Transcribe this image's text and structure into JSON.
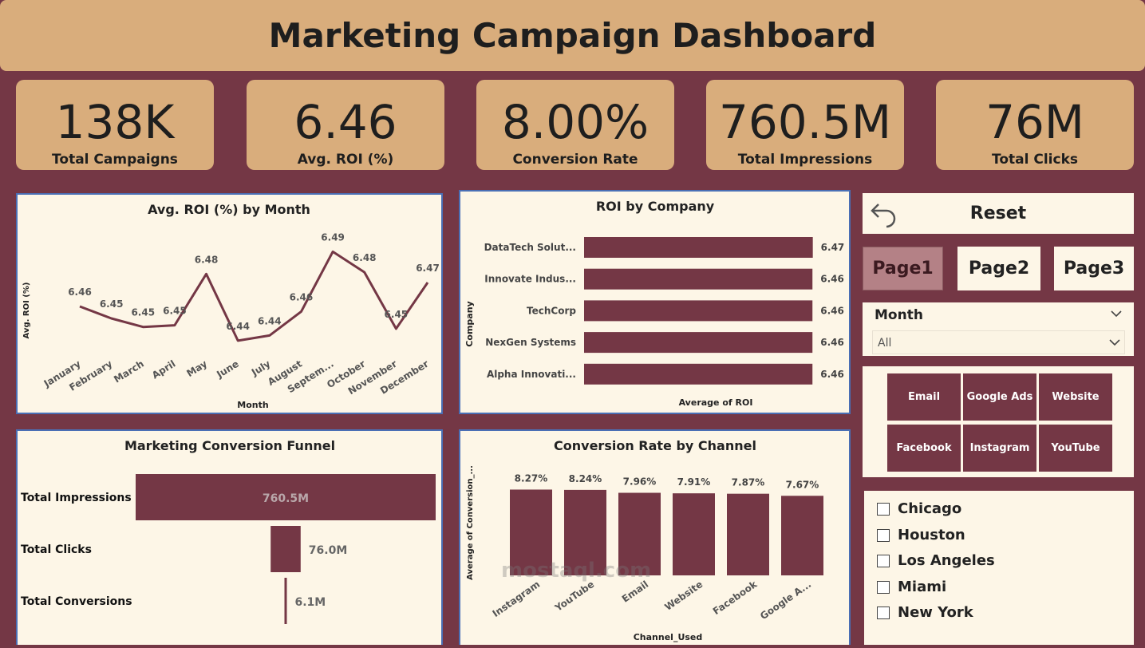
{
  "header": {
    "title": "Marketing Campaign Dashboard"
  },
  "kpis": [
    {
      "value": "138K",
      "label": "Total Campaigns"
    },
    {
      "value": "6.46",
      "label": "Avg. ROI (%)"
    },
    {
      "value": "8.00%",
      "label": "Conversion Rate"
    },
    {
      "value": "760.5M",
      "label": "Total Impressions"
    },
    {
      "value": "76M",
      "label": "Total Clicks"
    }
  ],
  "colors": {
    "bg": "#743745",
    "accent": "#d9ad7c",
    "panel": "#fdf6e7",
    "bar": "#743745"
  },
  "roi_month": {
    "title": "Avg. ROI (%) by Month",
    "xlabel": "Month",
    "ylabel": "Avg. ROI (%)"
  },
  "roi_company": {
    "title": "ROI by Company",
    "xlabel": "Average of ROI",
    "ylabel": "Company"
  },
  "funnel": {
    "title": "Marketing Conversion Funnel"
  },
  "conv_channel": {
    "title": "Conversion Rate by Channel",
    "xlabel": "Channel_Used",
    "ylabel": "Average of Conversion_..."
  },
  "chart_data": [
    {
      "type": "line",
      "title": "Avg. ROI (%) by Month",
      "xlabel": "Month",
      "ylabel": "Avg. ROI (%)",
      "categories": [
        "January",
        "February",
        "March",
        "April",
        "May",
        "June",
        "July",
        "August",
        "Septem...",
        "October",
        "November",
        "December"
      ],
      "values": [
        6.458,
        6.451,
        6.446,
        6.447,
        6.477,
        6.438,
        6.441,
        6.455,
        6.49,
        6.478,
        6.445,
        6.472
      ],
      "data_labels": [
        "6.46",
        "6.45",
        "6.45",
        "6.45",
        "6.48",
        "6.44",
        "6.44",
        "6.46",
        "6.49",
        "6.48",
        "6.45",
        "6.47"
      ],
      "ylim": [
        6.43,
        6.5
      ]
    },
    {
      "type": "bar",
      "title": "ROI by Company",
      "xlabel": "Average of ROI",
      "ylabel": "Company",
      "categories": [
        "DataTech Solut...",
        "Innovate Indus...",
        "TechCorp",
        "NexGen Systems",
        "Alpha Innovati..."
      ],
      "values": [
        6.47,
        6.46,
        6.46,
        6.46,
        6.46
      ],
      "data_labels": [
        "6.47",
        "6.46",
        "6.46",
        "6.46",
        "6.46"
      ],
      "xlim": [
        0,
        6.5
      ]
    },
    {
      "type": "bar",
      "title": "Marketing Conversion Funnel",
      "categories": [
        "Total Impressions",
        "Total Clicks",
        "Total Conversions"
      ],
      "values": [
        760.5,
        76.0,
        6.1
      ],
      "data_labels": [
        "760.5M",
        "76.0M",
        "6.1M"
      ]
    },
    {
      "type": "bar",
      "title": "Conversion Rate by Channel",
      "xlabel": "Channel_Used",
      "ylabel": "Average of Conversion_...",
      "categories": [
        "Instagram",
        "YouTube",
        "Email",
        "Website",
        "Facebook",
        "Google A..."
      ],
      "values": [
        8.27,
        8.24,
        7.96,
        7.91,
        7.87,
        7.67
      ],
      "data_labels": [
        "8.27%",
        "8.24%",
        "7.96%",
        "7.91%",
        "7.87%",
        "7.67%"
      ],
      "ylim": [
        0,
        9
      ]
    }
  ],
  "controls": {
    "reset": "Reset",
    "pages": [
      "Page1",
      "Page2",
      "Page3"
    ],
    "month_label": "Month",
    "month_value": "All",
    "channels": [
      "Email",
      "Google Ads",
      "Website",
      "Facebook",
      "Instagram",
      "YouTube"
    ],
    "cities": [
      "Chicago",
      "Houston",
      "Los Angeles",
      "Miami",
      "New York"
    ]
  },
  "watermark": "mostaql.com"
}
